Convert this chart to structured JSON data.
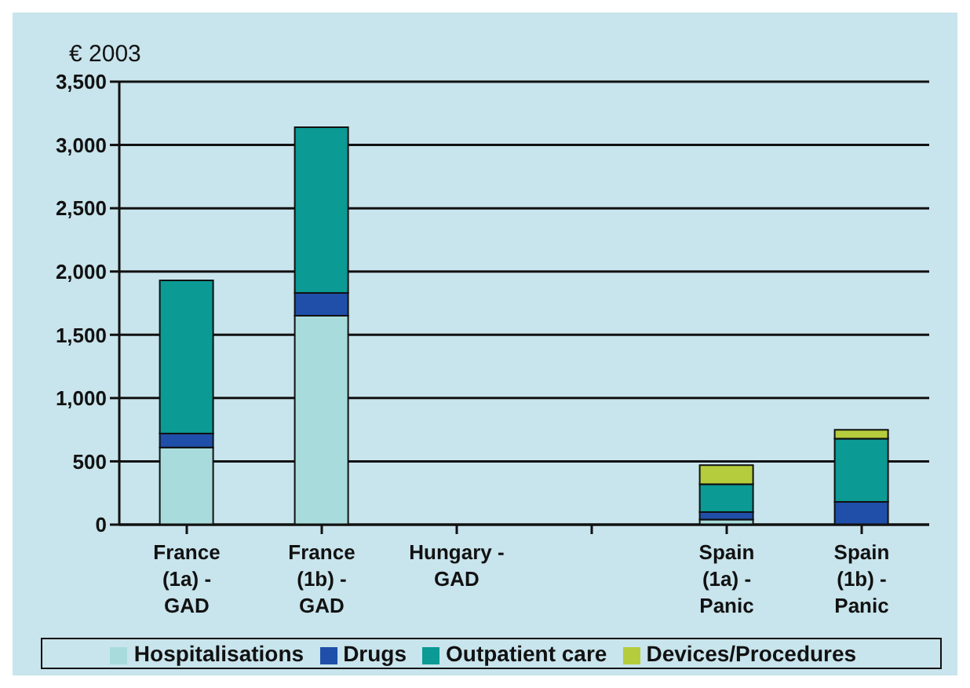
{
  "chart_data": {
    "type": "bar",
    "stacked": true,
    "ylabel": "€ 2003",
    "categories": [
      "France (1a) - GAD",
      "France (1b) - GAD",
      "Hungary - GAD",
      null,
      "Spain (1a) - Panic",
      "Spain (1b) - Panic"
    ],
    "series": [
      {
        "name": "Hospitalisations",
        "color": "#a8dcdc",
        "values": [
          610,
          1650,
          null,
          null,
          40,
          0
        ]
      },
      {
        "name": "Drugs",
        "color": "#1f4fa8",
        "values": [
          110,
          180,
          null,
          null,
          60,
          180
        ]
      },
      {
        "name": "Outpatient care",
        "color": "#0b9a94",
        "values": [
          1210,
          1310,
          null,
          null,
          220,
          500
        ]
      },
      {
        "name": "Devices/Procedures",
        "color": "#b5cc3c",
        "values": [
          0,
          0,
          null,
          null,
          150,
          70
        ]
      }
    ],
    "ylim": [
      0,
      3500
    ],
    "yticks": [
      0,
      500,
      {
        "value": 1000,
        "label": "1,000"
      },
      {
        "value": 1500,
        "label": "1,500"
      },
      {
        "value": 2000,
        "label": "2,000"
      },
      {
        "value": 2500,
        "label": "2,500"
      },
      {
        "value": 3000,
        "label": "3,000"
      },
      {
        "value": 3500,
        "label": "3,500"
      }
    ],
    "grid": "y",
    "legend": "bottom"
  }
}
